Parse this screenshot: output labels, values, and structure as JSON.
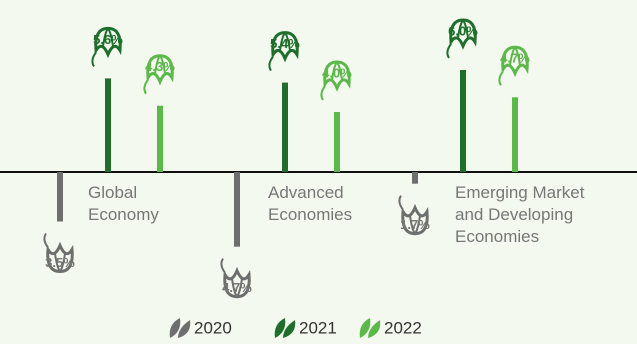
{
  "chart_data": {
    "type": "sprout-bar",
    "categories": [
      "Global\nEconomy",
      "Advanced\nEconomies",
      "Emerging Market\nand Developing\nEconomies"
    ],
    "series": [
      {
        "name": "2020",
        "color": "#6e6e6e",
        "values": [
          -3.5,
          -4.7,
          -1.7
        ],
        "value_labels": [
          "3.5%",
          "4.7%",
          "1.7%"
        ]
      },
      {
        "name": "2021",
        "color": "#1f6e2c",
        "values": [
          5.6,
          5.4,
          6.0
        ],
        "value_labels": [
          "5.6%",
          "5.4%",
          "6.0%"
        ]
      },
      {
        "name": "2022",
        "color": "#5cb84a",
        "values": [
          4.3,
          4.0,
          4.7
        ],
        "value_labels": [
          "4.3%",
          "4.0%",
          "4.7%"
        ]
      }
    ],
    "legend": "bottom"
  }
}
